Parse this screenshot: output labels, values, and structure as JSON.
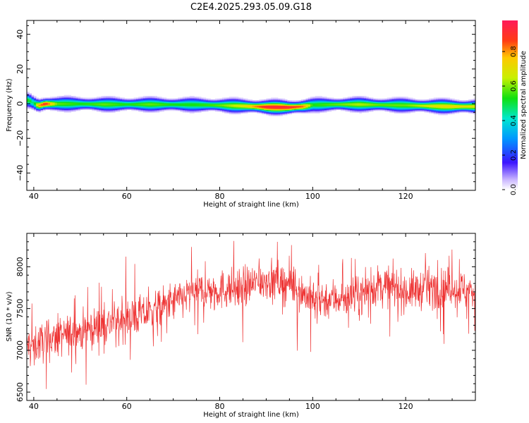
{
  "figure": {
    "title": "C2E4.2025.293.05.09.G18"
  },
  "chart_data": [
    {
      "type": "heatmap",
      "title": "",
      "xlabel": "Height of straight line (km)",
      "ylabel": "Frequency (Hz)",
      "xlim": [
        38.5,
        135
      ],
      "ylim": [
        -50,
        48
      ],
      "x_ticks": [
        40,
        60,
        80,
        100,
        120
      ],
      "y_ticks": [
        40,
        20,
        0,
        -20,
        -40
      ],
      "colorbar": {
        "label": "Normalized spectral amplitude",
        "range": [
          0,
          0.98
        ],
        "ticks": [
          0.0,
          0.2,
          0.4,
          0.6,
          0.8
        ]
      },
      "ridge": [
        {
          "x": 39.0,
          "freq": 2.0,
          "amp": 0.55
        },
        {
          "x": 40.0,
          "freq": 0.5,
          "amp": 0.45
        },
        {
          "x": 41.0,
          "freq": -1.0,
          "amp": 0.8
        },
        {
          "x": 42.5,
          "freq": 0.0,
          "amp": 0.95
        },
        {
          "x": 45.0,
          "freq": 0.0,
          "amp": 0.6
        },
        {
          "x": 50.0,
          "freq": 0.0,
          "amp": 0.55
        },
        {
          "x": 55.0,
          "freq": -0.3,
          "amp": 0.6
        },
        {
          "x": 60.0,
          "freq": -0.3,
          "amp": 0.55
        },
        {
          "x": 65.0,
          "freq": -0.3,
          "amp": 0.6
        },
        {
          "x": 70.0,
          "freq": -0.4,
          "amp": 0.55
        },
        {
          "x": 75.0,
          "freq": -0.5,
          "amp": 0.55
        },
        {
          "x": 80.0,
          "freq": -0.8,
          "amp": 0.6
        },
        {
          "x": 85.0,
          "freq": -1.2,
          "amp": 0.7
        },
        {
          "x": 90.0,
          "freq": -1.8,
          "amp": 0.95
        },
        {
          "x": 95.0,
          "freq": -2.0,
          "amp": 0.95
        },
        {
          "x": 98.0,
          "freq": -1.5,
          "amp": 0.85
        },
        {
          "x": 100.0,
          "freq": -0.6,
          "amp": 0.55
        },
        {
          "x": 105.0,
          "freq": -0.3,
          "amp": 0.6
        },
        {
          "x": 110.0,
          "freq": -0.3,
          "amp": 0.65
        },
        {
          "x": 115.0,
          "freq": -0.6,
          "amp": 0.6
        },
        {
          "x": 120.0,
          "freq": -0.8,
          "amp": 0.6
        },
        {
          "x": 125.0,
          "freq": -1.2,
          "amp": 0.7
        },
        {
          "x": 130.0,
          "freq": -1.5,
          "amp": 0.75
        },
        {
          "x": 135.0,
          "freq": -1.5,
          "amp": 0.7
        }
      ]
    },
    {
      "type": "line",
      "title": "",
      "xlabel": "Height of straight line (km)",
      "ylabel": "SNR (10 * v/v)",
      "xlim": [
        38.5,
        135
      ],
      "ylim": [
        6400,
        8400
      ],
      "x_ticks": [
        40,
        60,
        80,
        100,
        120
      ],
      "y_ticks": [
        6500,
        7000,
        7500,
        8000
      ],
      "series": [
        {
          "color": "#ee3333",
          "trend": [
            {
              "x": 38.5,
              "y": 7050
            },
            {
              "x": 45,
              "y": 7150
            },
            {
              "x": 55,
              "y": 7300
            },
            {
              "x": 65,
              "y": 7450
            },
            {
              "x": 75,
              "y": 7700
            },
            {
              "x": 85,
              "y": 7750
            },
            {
              "x": 90,
              "y": 7850
            },
            {
              "x": 95,
              "y": 7800
            },
            {
              "x": 100,
              "y": 7600
            },
            {
              "x": 110,
              "y": 7650
            },
            {
              "x": 115,
              "y": 7800
            },
            {
              "x": 120,
              "y": 7700
            },
            {
              "x": 125,
              "y": 7750
            },
            {
              "x": 130,
              "y": 7750
            },
            {
              "x": 135,
              "y": 7700
            }
          ]
        }
      ]
    }
  ]
}
